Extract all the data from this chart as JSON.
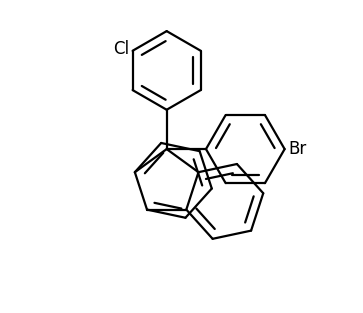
{
  "bg_color": "#ffffff",
  "line_color": "#000000",
  "line_width": 1.6,
  "label_Cl": "Cl",
  "label_Br": "Br",
  "label_fontsize": 12,
  "fig_width": 3.63,
  "fig_height": 3.13,
  "dpi": 100
}
